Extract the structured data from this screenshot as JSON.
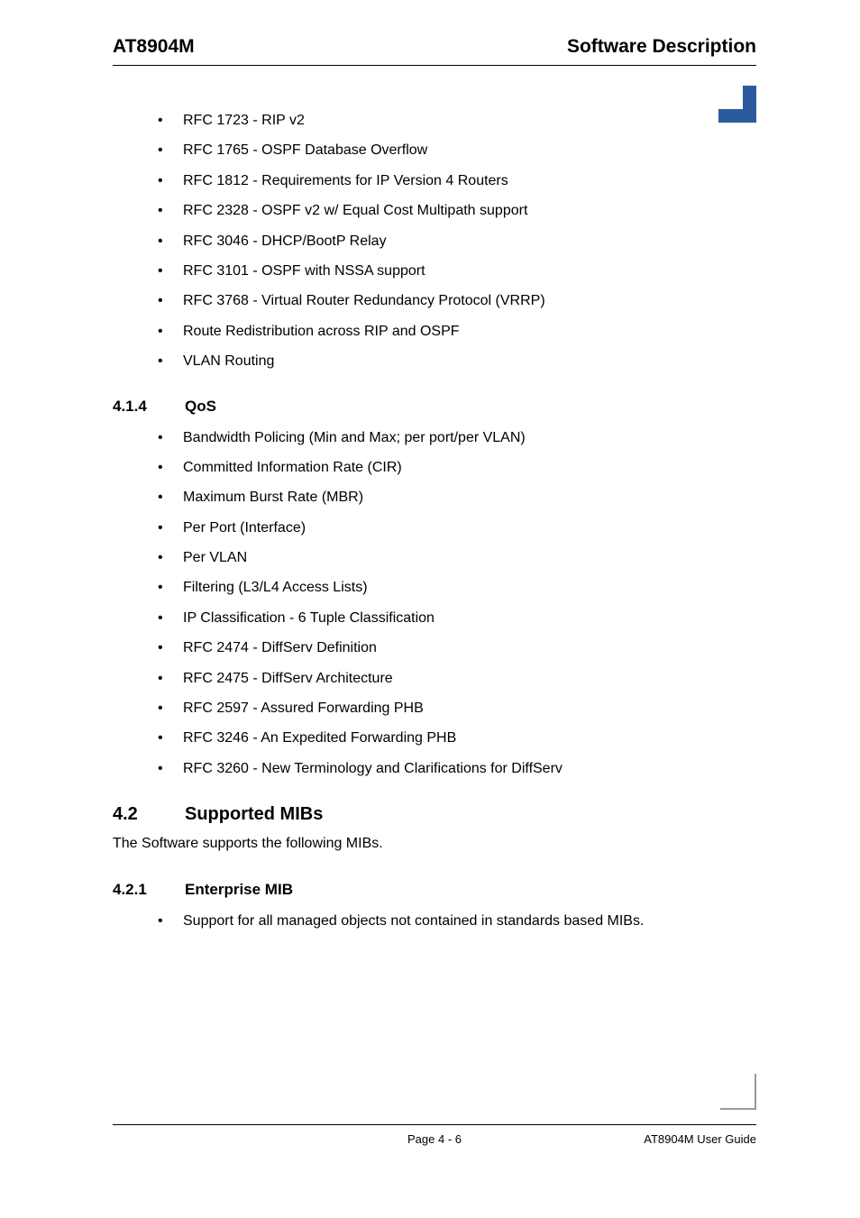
{
  "header": {
    "left": "AT8904M",
    "right": "Software Description"
  },
  "list1": {
    "items": [
      "RFC 1723 - RIP v2",
      "RFC 1765 - OSPF Database Overflow",
      "RFC 1812 - Requirements for IP Version 4  Routers",
      "RFC 2328 - OSPF v2 w/ Equal Cost Multipath support",
      "RFC 3046 - DHCP/BootP Relay",
      "RFC 3101 - OSPF with NSSA support",
      "RFC 3768 - Virtual Router Redundancy Protocol (VRRP)",
      "Route Redistribution across RIP and OSPF",
      "VLAN Routing"
    ]
  },
  "subsection414": {
    "number": "4.1.4",
    "title": "QoS"
  },
  "list2": {
    "items": [
      "Bandwidth Policing (Min and Max; per port/per VLAN)",
      "Committed Information Rate (CIR)",
      "Maximum Burst Rate (MBR)",
      "Per Port (Interface)",
      "Per VLAN",
      "Filtering (L3/L4 Access Lists)",
      "IP Classification - 6 Tuple Classification",
      "RFC 2474 - DiffServ Definition",
      "RFC 2475 - DiffServ Architecture",
      "RFC 2597 - Assured Forwarding PHB",
      "RFC 3246 - An Expedited Forwarding PHB",
      "RFC 3260 - New Terminology and Clarifications for DiffServ"
    ]
  },
  "section42": {
    "number": "4.2",
    "title": "Supported MIBs",
    "intro": "The Software supports the following MIBs."
  },
  "subsection421": {
    "number": "4.2.1",
    "title": "Enterprise MIB"
  },
  "list3": {
    "items": [
      "Support for all managed objects not contained in standards based MIBs."
    ]
  },
  "footer": {
    "center": "Page 4 - 6",
    "right": "AT8904M User Guide"
  },
  "colors": {
    "corner_mark": "#2c5a9e",
    "text": "#000000",
    "background": "#ffffff"
  },
  "typography": {
    "header_size": 21,
    "section_size": 20,
    "subsection_size": 17,
    "body_size": 16,
    "footer_size": 13,
    "font_family": "Arial"
  }
}
